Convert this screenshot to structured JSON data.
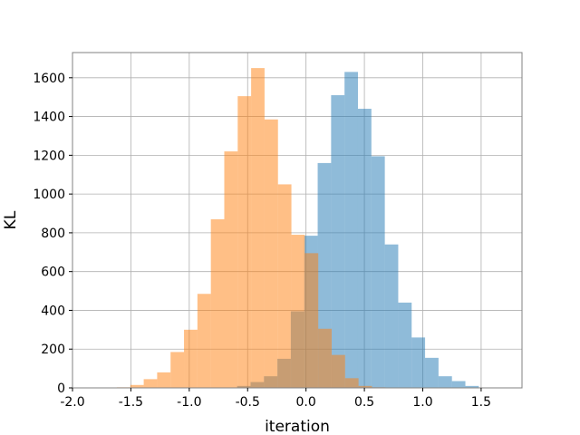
{
  "chart_data": {
    "type": "bar",
    "subtype": "overlapping-histogram",
    "title": "",
    "xlabel": "iteration",
    "ylabel": "KL",
    "xlim": [
      -2.0,
      1.85
    ],
    "ylim": [
      0,
      1730
    ],
    "grid": true,
    "legend": "none",
    "xticks": [
      "-2.0",
      "-1.5",
      "-1.0",
      "-0.5",
      "0.0",
      "0.5",
      "1.0",
      "1.5"
    ],
    "xtick_values": [
      -2.0,
      -1.5,
      -1.0,
      -0.5,
      0.0,
      0.5,
      1.0,
      1.5
    ],
    "yticks": [
      "0",
      "200",
      "400",
      "600",
      "800",
      "1000",
      "1200",
      "1400",
      "1600"
    ],
    "ytick_values": [
      0,
      200,
      400,
      600,
      800,
      1000,
      1200,
      1400,
      1600
    ],
    "series": [
      {
        "color": "#1f77b4",
        "alpha": 0.5,
        "bins": [
          {
            "x0": -0.705,
            "x1": -0.59,
            "count": 2
          },
          {
            "x0": -0.59,
            "x1": -0.475,
            "count": 10
          },
          {
            "x0": -0.475,
            "x1": -0.36,
            "count": 30
          },
          {
            "x0": -0.36,
            "x1": -0.245,
            "count": 60
          },
          {
            "x0": -0.245,
            "x1": -0.13,
            "count": 150
          },
          {
            "x0": -0.13,
            "x1": -0.015,
            "count": 395
          },
          {
            "x0": -0.015,
            "x1": 0.1,
            "count": 785
          },
          {
            "x0": 0.1,
            "x1": 0.215,
            "count": 1160
          },
          {
            "x0": 0.215,
            "x1": 0.33,
            "count": 1510
          },
          {
            "x0": 0.33,
            "x1": 0.445,
            "count": 1630
          },
          {
            "x0": 0.445,
            "x1": 0.56,
            "count": 1440
          },
          {
            "x0": 0.56,
            "x1": 0.675,
            "count": 1195
          },
          {
            "x0": 0.675,
            "x1": 0.79,
            "count": 740
          },
          {
            "x0": 0.79,
            "x1": 0.905,
            "count": 440
          },
          {
            "x0": 0.905,
            "x1": 1.02,
            "count": 260
          },
          {
            "x0": 1.02,
            "x1": 1.135,
            "count": 155
          },
          {
            "x0": 1.135,
            "x1": 1.25,
            "count": 60
          },
          {
            "x0": 1.25,
            "x1": 1.365,
            "count": 35
          },
          {
            "x0": 1.365,
            "x1": 1.48,
            "count": 10
          },
          {
            "x0": 1.48,
            "x1": 1.595,
            "count": 2
          }
        ]
      },
      {
        "color": "#ff7f0e",
        "alpha": 0.5,
        "bins": [
          {
            "x0": -1.62,
            "x1": -1.505,
            "count": 3
          },
          {
            "x0": -1.505,
            "x1": -1.39,
            "count": 15
          },
          {
            "x0": -1.39,
            "x1": -1.275,
            "count": 45
          },
          {
            "x0": -1.275,
            "x1": -1.16,
            "count": 80
          },
          {
            "x0": -1.16,
            "x1": -1.045,
            "count": 185
          },
          {
            "x0": -1.045,
            "x1": -0.93,
            "count": 300
          },
          {
            "x0": -0.93,
            "x1": -0.815,
            "count": 485
          },
          {
            "x0": -0.815,
            "x1": -0.7,
            "count": 870
          },
          {
            "x0": -0.7,
            "x1": -0.585,
            "count": 1220
          },
          {
            "x0": -0.585,
            "x1": -0.47,
            "count": 1505
          },
          {
            "x0": -0.47,
            "x1": -0.355,
            "count": 1650
          },
          {
            "x0": -0.355,
            "x1": -0.24,
            "count": 1385
          },
          {
            "x0": -0.24,
            "x1": -0.125,
            "count": 1050
          },
          {
            "x0": -0.125,
            "x1": -0.01,
            "count": 790
          },
          {
            "x0": -0.01,
            "x1": 0.105,
            "count": 695
          },
          {
            "x0": 0.105,
            "x1": 0.22,
            "count": 305
          },
          {
            "x0": 0.22,
            "x1": 0.335,
            "count": 170
          },
          {
            "x0": 0.335,
            "x1": 0.45,
            "count": 50
          },
          {
            "x0": 0.45,
            "x1": 0.565,
            "count": 10
          },
          {
            "x0": 0.565,
            "x1": 0.68,
            "count": 3
          }
        ]
      }
    ]
  }
}
